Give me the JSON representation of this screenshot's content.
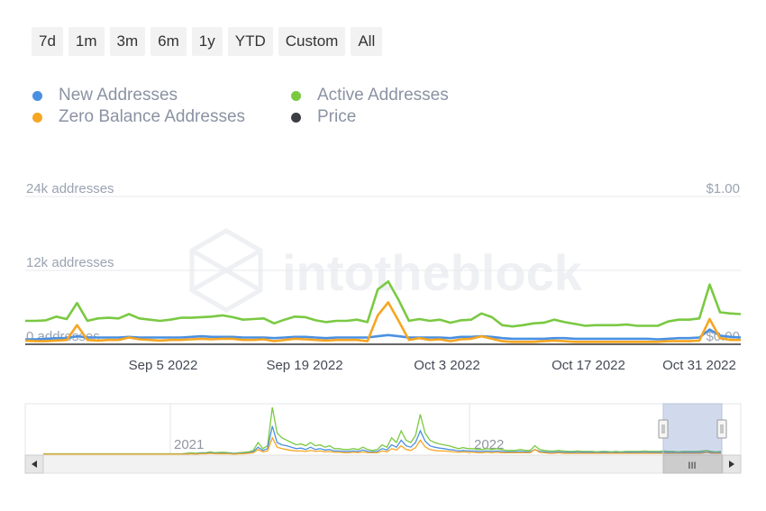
{
  "range_buttons": [
    {
      "label": "7d"
    },
    {
      "label": "1m"
    },
    {
      "label": "3m"
    },
    {
      "label": "6m"
    },
    {
      "label": "1y"
    },
    {
      "label": "YTD"
    },
    {
      "label": "Custom"
    },
    {
      "label": "All"
    }
  ],
  "legend": [
    {
      "label": "New Addresses",
      "color": "#4a90e2"
    },
    {
      "label": "Active Addresses",
      "color": "#7ac943"
    },
    {
      "label": "Zero Balance Addresses",
      "color": "#f5a623"
    },
    {
      "label": "Price",
      "color": "#3b3f45"
    }
  ],
  "watermark": "intotheblock",
  "navigator": {
    "labels": [
      "2021",
      "2022"
    ],
    "selection": [
      0.88,
      0.98
    ],
    "handle_glyph": "III"
  },
  "chart_data": {
    "type": "line",
    "title": "",
    "x_start": "2022-08-27",
    "x_end": "2022-11-05",
    "x_ticks": [
      "Sep 5 2022",
      "Sep 19 2022",
      "Oct 3 2022",
      "Oct 17 2022",
      "Oct 31 2022"
    ],
    "y_left_ticks": [
      "0 addresses",
      "12k addresses",
      "24k addresses"
    ],
    "y_right_ticks": [
      "$0.00",
      "$1.00"
    ],
    "y_left_range": [
      0,
      24000
    ],
    "y_right_range": [
      0,
      1
    ],
    "grid": true,
    "legend_position": "top-left",
    "series": [
      {
        "name": "Active Addresses",
        "color": "#7ac943",
        "values": [
          3800,
          3800,
          3900,
          4500,
          4100,
          6700,
          3800,
          4200,
          4300,
          4200,
          4900,
          4200,
          4000,
          3800,
          4000,
          4300,
          4300,
          4400,
          4500,
          4700,
          4400,
          4000,
          4100,
          4200,
          3400,
          4000,
          4500,
          4400,
          3900,
          3600,
          3800,
          3800,
          4000,
          3600,
          8900,
          10200,
          7200,
          3800,
          4100,
          3800,
          4000,
          3500,
          3900,
          4000,
          5000,
          4400,
          3100,
          2900,
          3100,
          3400,
          3500,
          4000,
          3600,
          3300,
          3000,
          3100,
          3100,
          3100,
          3200,
          3000,
          3000,
          3000,
          3700,
          4000,
          4000,
          4200,
          9700,
          5200,
          5000,
          4900
        ]
      },
      {
        "name": "New Addresses",
        "color": "#4a90e2",
        "values": [
          800,
          800,
          900,
          1000,
          1000,
          1300,
          1100,
          1100,
          1100,
          1100,
          1200,
          1100,
          1100,
          1100,
          1100,
          1100,
          1200,
          1300,
          1200,
          1200,
          1200,
          1100,
          1100,
          1100,
          1000,
          1100,
          1200,
          1200,
          1100,
          1000,
          1100,
          1100,
          1100,
          1100,
          1300,
          1500,
          1300,
          1100,
          1100,
          1100,
          1100,
          1000,
          1200,
          1200,
          1300,
          1200,
          1000,
          900,
          900,
          900,
          900,
          1000,
          1000,
          900,
          900,
          900,
          900,
          900,
          900,
          900,
          900,
          800,
          900,
          1000,
          1000,
          1100,
          2400,
          1400,
          1200,
          1100
        ]
      },
      {
        "name": "Zero Balance Addresses",
        "color": "#f5a623",
        "values": [
          600,
          500,
          500,
          600,
          700,
          3100,
          700,
          600,
          700,
          700,
          1100,
          800,
          700,
          600,
          700,
          700,
          800,
          900,
          800,
          900,
          900,
          700,
          700,
          800,
          500,
          700,
          900,
          800,
          700,
          600,
          700,
          700,
          700,
          500,
          4700,
          6800,
          3800,
          700,
          1000,
          700,
          800,
          500,
          800,
          900,
          1300,
          900,
          500,
          400,
          400,
          400,
          500,
          600,
          500,
          400,
          400,
          400,
          400,
          400,
          400,
          400,
          400,
          400,
          500,
          500,
          500,
          600,
          4100,
          1000,
          700,
          700
        ]
      }
    ],
    "navigator_series": [
      {
        "name": "Active Addresses",
        "color": "#7ac943",
        "values": [
          0.01,
          0.01,
          0.01,
          0.01,
          0.01,
          0.01,
          0.01,
          0.01,
          0.01,
          0.01,
          0.01,
          0.01,
          0.01,
          0.01,
          0.01,
          0.01,
          0.01,
          0.01,
          0.01,
          0.01,
          0.01,
          0.01,
          0.01,
          0.01,
          0.01,
          0.01,
          0.01,
          0.01,
          0.01,
          0.01,
          0.02,
          0.03,
          0.02,
          0.03,
          0.03,
          0.05,
          0.03,
          0.04,
          0.04,
          0.03,
          0.02,
          0.03,
          0.04,
          0.05,
          0.08,
          0.25,
          0.12,
          0.18,
          1.0,
          0.45,
          0.35,
          0.3,
          0.25,
          0.2,
          0.22,
          0.18,
          0.25,
          0.18,
          0.2,
          0.15,
          0.18,
          0.12,
          0.12,
          0.1,
          0.1,
          0.12,
          0.1,
          0.15,
          0.1,
          0.08,
          0.1,
          0.2,
          0.15,
          0.35,
          0.25,
          0.5,
          0.3,
          0.25,
          0.4,
          0.85,
          0.45,
          0.3,
          0.25,
          0.22,
          0.2,
          0.18,
          0.15,
          0.12,
          0.14,
          0.12,
          0.12,
          0.1,
          0.1,
          0.12,
          0.1,
          0.12,
          0.1,
          0.08,
          0.08,
          0.08,
          0.1,
          0.08,
          0.08,
          0.18,
          0.1,
          0.08,
          0.07,
          0.07,
          0.08,
          0.07,
          0.06,
          0.06,
          0.07,
          0.06,
          0.06,
          0.06,
          0.05,
          0.06,
          0.06,
          0.05,
          0.06,
          0.05,
          0.06,
          0.06,
          0.06,
          0.06,
          0.07,
          0.06,
          0.06,
          0.06,
          0.07,
          0.06,
          0.06,
          0.05,
          0.06,
          0.06,
          0.06,
          0.06,
          0.07,
          0.08,
          0.06,
          0.05,
          0.06
        ]
      },
      {
        "name": "New Addresses",
        "color": "#4a90e2",
        "values": [
          0.0,
          0.0,
          0.0,
          0.0,
          0.0,
          0.0,
          0.0,
          0.0,
          0.0,
          0.0,
          0.0,
          0.0,
          0.0,
          0.0,
          0.0,
          0.0,
          0.0,
          0.0,
          0.0,
          0.0,
          0.0,
          0.0,
          0.0,
          0.0,
          0.0,
          0.0,
          0.0,
          0.0,
          0.0,
          0.0,
          0.01,
          0.01,
          0.01,
          0.02,
          0.02,
          0.03,
          0.02,
          0.02,
          0.02,
          0.02,
          0.01,
          0.02,
          0.02,
          0.03,
          0.05,
          0.15,
          0.08,
          0.12,
          0.6,
          0.25,
          0.2,
          0.18,
          0.15,
          0.12,
          0.13,
          0.1,
          0.15,
          0.1,
          0.12,
          0.09,
          0.1,
          0.07,
          0.07,
          0.06,
          0.06,
          0.07,
          0.06,
          0.09,
          0.06,
          0.05,
          0.06,
          0.12,
          0.09,
          0.2,
          0.15,
          0.3,
          0.18,
          0.15,
          0.25,
          0.5,
          0.28,
          0.18,
          0.15,
          0.13,
          0.12,
          0.1,
          0.09,
          0.07,
          0.08,
          0.07,
          0.07,
          0.06,
          0.06,
          0.07,
          0.06,
          0.07,
          0.06,
          0.05,
          0.05,
          0.05,
          0.06,
          0.05,
          0.05,
          0.1,
          0.06,
          0.05,
          0.04,
          0.04,
          0.05,
          0.04,
          0.04,
          0.04,
          0.04,
          0.04,
          0.04,
          0.04,
          0.03,
          0.04,
          0.04,
          0.03,
          0.04,
          0.03,
          0.04,
          0.04,
          0.04,
          0.04,
          0.04,
          0.04,
          0.04,
          0.04,
          0.04,
          0.04,
          0.04,
          0.03,
          0.04,
          0.04,
          0.04,
          0.04,
          0.04,
          0.05,
          0.04,
          0.03,
          0.04
        ]
      },
      {
        "name": "Zero Balance Addresses",
        "color": "#f5a623",
        "values": [
          0.0,
          0.0,
          0.0,
          0.0,
          0.0,
          0.0,
          0.0,
          0.0,
          0.0,
          0.0,
          0.0,
          0.0,
          0.0,
          0.0,
          0.0,
          0.0,
          0.0,
          0.0,
          0.0,
          0.0,
          0.0,
          0.0,
          0.0,
          0.0,
          0.0,
          0.0,
          0.0,
          0.0,
          0.0,
          0.0,
          0.0,
          0.01,
          0.0,
          0.01,
          0.01,
          0.02,
          0.01,
          0.01,
          0.01,
          0.01,
          0.0,
          0.01,
          0.01,
          0.02,
          0.03,
          0.1,
          0.05,
          0.07,
          0.35,
          0.15,
          0.12,
          0.1,
          0.08,
          0.07,
          0.07,
          0.06,
          0.08,
          0.06,
          0.07,
          0.05,
          0.06,
          0.04,
          0.04,
          0.03,
          0.03,
          0.04,
          0.03,
          0.05,
          0.03,
          0.03,
          0.03,
          0.07,
          0.05,
          0.12,
          0.09,
          0.18,
          0.1,
          0.08,
          0.14,
          0.3,
          0.16,
          0.1,
          0.08,
          0.07,
          0.07,
          0.06,
          0.05,
          0.04,
          0.05,
          0.04,
          0.04,
          0.03,
          0.03,
          0.04,
          0.03,
          0.04,
          0.03,
          0.03,
          0.03,
          0.03,
          0.03,
          0.03,
          0.03,
          0.1,
          0.04,
          0.03,
          0.02,
          0.02,
          0.03,
          0.02,
          0.02,
          0.02,
          0.02,
          0.02,
          0.02,
          0.02,
          0.02,
          0.02,
          0.02,
          0.02,
          0.02,
          0.02,
          0.02,
          0.02,
          0.02,
          0.02,
          0.02,
          0.02,
          0.02,
          0.02,
          0.02,
          0.02,
          0.02,
          0.02,
          0.02,
          0.02,
          0.02,
          0.02,
          0.02,
          0.04,
          0.02,
          0.02,
          0.02
        ]
      }
    ]
  }
}
